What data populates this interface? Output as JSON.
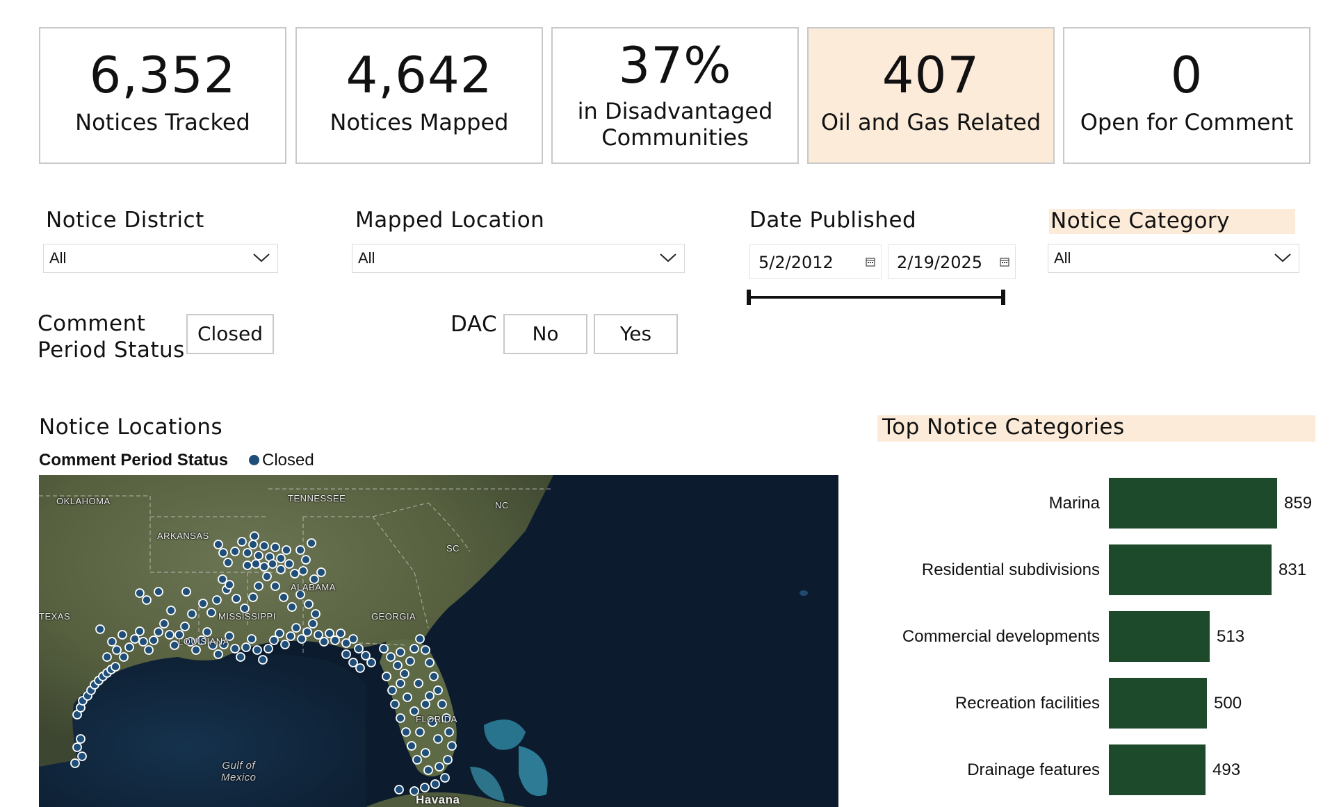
{
  "kpis": [
    {
      "value": "6,352",
      "label": "Notices Tracked"
    },
    {
      "value": "4,642",
      "label": "Notices Mapped"
    },
    {
      "value": "37%",
      "label_line1": "in Disadvantaged",
      "label_line2": "Communities"
    },
    {
      "value": "407",
      "label": "Oil and Gas Related",
      "highlighted": true
    },
    {
      "value": "0",
      "label": "Open for Comment"
    }
  ],
  "filters": {
    "notice_district": {
      "title": "Notice District",
      "value": "All"
    },
    "mapped_location": {
      "title": "Mapped Location",
      "value": "All"
    },
    "date_published": {
      "title": "Date Published",
      "start": "5/2/2012",
      "end": "2/19/2025"
    },
    "notice_category": {
      "title": "Notice Category",
      "value": "All"
    },
    "comment_status": {
      "title_line1": "Comment",
      "title_line2": "Period Status",
      "options": [
        "Closed"
      ]
    },
    "dac": {
      "title": "DAC",
      "options": [
        "No",
        "Yes"
      ]
    }
  },
  "map": {
    "title": "Notice Locations",
    "legend_title": "Comment Period Status",
    "legend_item": "Closed",
    "point_color": "#1f4e79",
    "labels": {
      "oklahoma": "OKLAHOMA",
      "tennessee": "TENNESSEE",
      "nc": "NC",
      "arkansas": "ARKANSAS",
      "sc": "SC",
      "alabama": "ALABAMA",
      "mississippi": "MISSISSIPPI",
      "georgia": "GEORGIA",
      "texas": "TEXAS",
      "louisiana": "LOUISIANA",
      "florida": "FLORIDA",
      "gulf_line1": "Gulf of",
      "gulf_line2": "Mexico",
      "havana": "Havana"
    }
  },
  "categories_chart": {
    "title": "Top Notice Categories",
    "bar_color": "#1c4a2b",
    "chart_data": {
      "type": "bar",
      "orientation": "horizontal",
      "categories": [
        "Marina",
        "Residential subdivisions",
        "Commercial developments",
        "Recreation facilities",
        "Drainage features"
      ],
      "values": [
        859,
        831,
        513,
        500,
        493
      ],
      "value_labels": [
        "859",
        "831",
        "513",
        "500",
        "493"
      ]
    }
  }
}
